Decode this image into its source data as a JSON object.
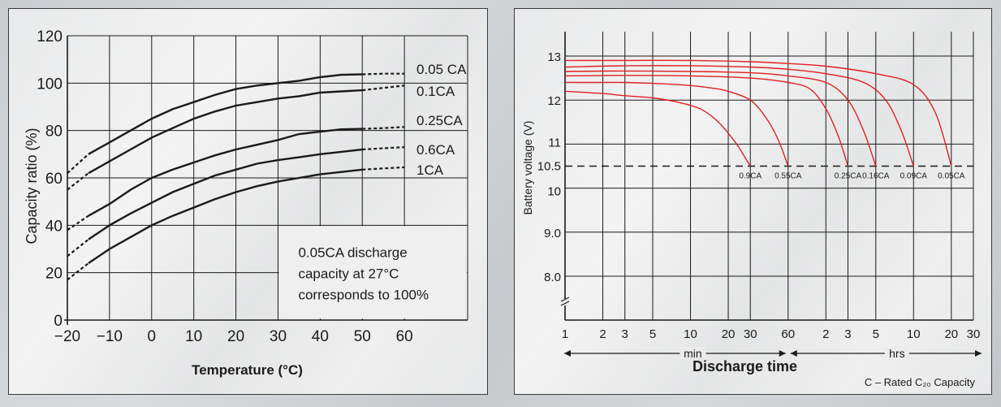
{
  "chart_data": [
    {
      "type": "line",
      "xlabel": "Temperature (°C)",
      "ylabel": "Capacity ratio (%)",
      "xlim": [
        -20,
        60
      ],
      "ylim": [
        0,
        120
      ],
      "x_ticks": [
        "−20",
        "−10",
        "0",
        "10",
        "20",
        "30",
        "40",
        "50",
        "60"
      ],
      "y_ticks": [
        "0",
        "20",
        "40",
        "60",
        "80",
        "100",
        "120"
      ],
      "annotation": [
        "0.05CA discharge",
        "capacity at 27°C",
        "corresponds to 100%"
      ],
      "series": [
        {
          "name": "0.05 CA",
          "x": [
            -20,
            -15,
            -10,
            -5,
            0,
            5,
            10,
            15,
            20,
            25,
            30,
            35,
            40,
            45,
            50,
            55,
            60
          ],
          "y": [
            62,
            70,
            75,
            80,
            85,
            89,
            92,
            95,
            97.5,
            99,
            100,
            101,
            102.5,
            103.5,
            103.7,
            104,
            104
          ]
        },
        {
          "name": "0.1CA",
          "x": [
            -20,
            -15,
            -10,
            -5,
            0,
            5,
            10,
            15,
            20,
            25,
            30,
            35,
            40,
            45,
            50,
            55,
            60
          ],
          "y": [
            55,
            62,
            67,
            72,
            77,
            81,
            85,
            88,
            90.5,
            92,
            93.5,
            94.5,
            96,
            96.5,
            97,
            98,
            99
          ]
        },
        {
          "name": "0.25CA",
          "x": [
            -20,
            -15,
            -10,
            -5,
            0,
            5,
            10,
            15,
            20,
            25,
            30,
            35,
            40,
            45,
            50,
            55,
            60
          ],
          "y": [
            38,
            44,
            49,
            55,
            60,
            63.5,
            66.5,
            69.5,
            72,
            74,
            76,
            78.5,
            79.5,
            80.5,
            80.7,
            81,
            81.5
          ]
        },
        {
          "name": "0.6CA",
          "x": [
            -20,
            -15,
            -10,
            -5,
            0,
            5,
            10,
            15,
            20,
            25,
            30,
            35,
            40,
            45,
            50,
            55,
            60
          ],
          "y": [
            27,
            34,
            40,
            45,
            49.5,
            54,
            57.5,
            61,
            63.5,
            66,
            67.5,
            68.7,
            70,
            71,
            72,
            72.5,
            73
          ]
        },
        {
          "name": "1CA",
          "x": [
            -20,
            -15,
            -10,
            -5,
            0,
            5,
            10,
            15,
            20,
            25,
            30,
            35,
            40,
            45,
            50,
            55,
            60
          ],
          "y": [
            17,
            24,
            30,
            35,
            40,
            44,
            47.5,
            51,
            54,
            56.5,
            58.5,
            60,
            61.5,
            62.5,
            63.5,
            64,
            64.5
          ]
        }
      ]
    },
    {
      "type": "line",
      "xlabel": "Discharge time",
      "ylabel": "Battery voltage (V)",
      "x_scale": "log",
      "y_ticks": [
        "8.0",
        "9.0",
        "10",
        "10.5",
        "11",
        "12",
        "13"
      ],
      "x_ticks_min": [
        "1",
        "2",
        "3",
        "5",
        "10",
        "20",
        "30",
        "60"
      ],
      "x_ticks_hrs": [
        "2",
        "3",
        "5",
        "10",
        "20",
        "30"
      ],
      "min_label": "min",
      "hrs_label": "hrs",
      "cutoff_voltage": 10.5,
      "footnote": "C – Rated C₂₀ Capacity",
      "series": [
        {
          "name": "0.9CA",
          "x_min": [
            1,
            2,
            3,
            5,
            8,
            12,
            16,
            20,
            24,
            30
          ],
          "y": [
            12.2,
            12.15,
            12.1,
            12.05,
            11.95,
            11.8,
            11.55,
            11.25,
            10.95,
            10.5
          ]
        },
        {
          "name": "0.55CA",
          "x_min": [
            1,
            2,
            3,
            5,
            10,
            15,
            20,
            30,
            40,
            50,
            60
          ],
          "y": [
            12.4,
            12.4,
            12.4,
            12.38,
            12.33,
            12.27,
            12.2,
            12.0,
            11.6,
            11.1,
            10.5
          ]
        },
        {
          "name": "0.25CA",
          "x_min": [
            1,
            3,
            10,
            30,
            60,
            90,
            120,
            150,
            180
          ],
          "y": [
            12.55,
            12.56,
            12.55,
            12.5,
            12.4,
            12.25,
            11.8,
            11.2,
            10.5
          ]
        },
        {
          "name": "0.16CA",
          "x_min": [
            1,
            3,
            10,
            30,
            60,
            120,
            180,
            240,
            300
          ],
          "y": [
            12.65,
            12.66,
            12.65,
            12.62,
            12.55,
            12.4,
            12.0,
            11.3,
            10.5
          ]
        },
        {
          "name": "0.09CA",
          "x_min": [
            1,
            3,
            10,
            30,
            60,
            120,
            240,
            360,
            480,
            600
          ],
          "y": [
            12.75,
            12.78,
            12.78,
            12.75,
            12.7,
            12.6,
            12.4,
            12.0,
            11.3,
            10.5
          ]
        },
        {
          "name": "0.05CA",
          "x_min": [
            1,
            3,
            10,
            30,
            60,
            120,
            300,
            600,
            900,
            1200
          ],
          "y": [
            12.9,
            12.9,
            12.9,
            12.87,
            12.83,
            12.77,
            12.6,
            12.35,
            11.7,
            10.5
          ]
        }
      ]
    }
  ],
  "colors": {
    "curve_left": "#1a1a1a",
    "curve_right": "#e02020",
    "grid": "#1a1a1a"
  }
}
